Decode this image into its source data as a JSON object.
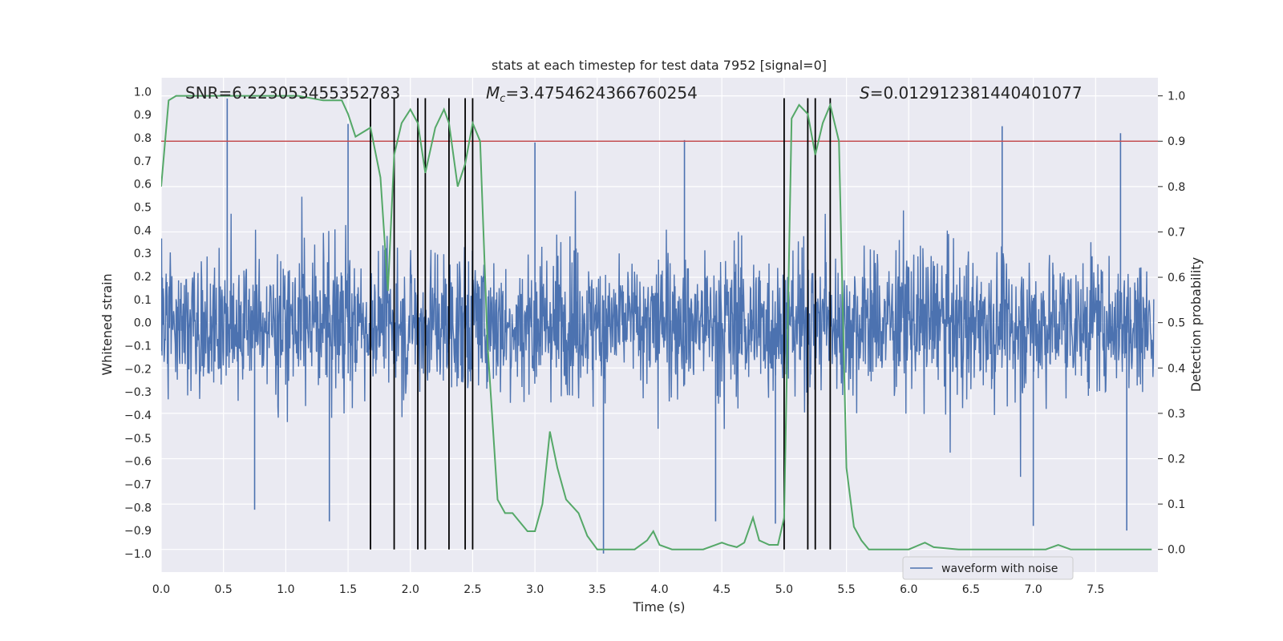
{
  "chart_data": {
    "type": "line",
    "title": "stats at each timestep for test data 7952 [signal=0]",
    "xlabel": "Time (s)",
    "ylabel_left": "Whitened strain",
    "ylabel_right": "Detection probability",
    "xlim": [
      0.0,
      8.0
    ],
    "ylim_left": [
      -1.08,
      1.06
    ],
    "ylim_right": [
      -0.05,
      1.04
    ],
    "x_ticks": [
      "0.0",
      "0.5",
      "1.0",
      "1.5",
      "2.0",
      "2.5",
      "3.0",
      "3.5",
      "4.0",
      "4.5",
      "5.0",
      "5.5",
      "6.0",
      "6.5",
      "7.0",
      "7.5"
    ],
    "y_left_ticks": [
      "1.0",
      "0.9",
      "0.8",
      "0.7",
      "0.6",
      "0.5",
      "0.4",
      "0.3",
      "0.2",
      "0.1",
      "0.0",
      "-0.1",
      "-0.2",
      "-0.3",
      "-0.4",
      "-0.5",
      "-0.6",
      "-0.7",
      "-0.8",
      "-0.9",
      "-1.0"
    ],
    "y_right_ticks": [
      "1.0",
      "0.9",
      "0.8",
      "0.7",
      "0.6",
      "0.5",
      "0.4",
      "0.3",
      "0.2",
      "0.1",
      "0.0"
    ],
    "annotations": {
      "snr": "SNR=6.223053455352783",
      "mc": "M",
      "mc_sub": "c",
      "mc_value": "=3.4754624366760254",
      "s": "S",
      "s_value": "=0.012912381440401077"
    },
    "threshold": 0.9,
    "detection_times": [
      1.68,
      1.87,
      2.06,
      2.12,
      2.31,
      2.44,
      2.5,
      5.0,
      5.19,
      5.25,
      5.37
    ],
    "series": [
      {
        "name": "waveform with noise",
        "color": "#4c72b0",
        "typical_amplitude": 0.42,
        "spikes": [
          {
            "t": 0.53,
            "v": 0.97
          },
          {
            "t": 1.5,
            "v": 0.86
          },
          {
            "t": 3.0,
            "v": 0.78
          },
          {
            "t": 4.2,
            "v": 0.79
          },
          {
            "t": 6.75,
            "v": 0.85
          },
          {
            "t": 7.7,
            "v": 0.82
          },
          {
            "t": 0.75,
            "v": -0.81
          },
          {
            "t": 1.35,
            "v": -0.86
          },
          {
            "t": 3.55,
            "v": -1.0
          },
          {
            "t": 4.45,
            "v": -0.86
          },
          {
            "t": 4.93,
            "v": -0.87
          },
          {
            "t": 7.0,
            "v": -0.88
          },
          {
            "t": 7.75,
            "v": -0.9
          }
        ]
      },
      {
        "name": "detection probability",
        "color": "#55a868",
        "x": [
          0.0,
          0.06,
          0.12,
          0.3,
          0.6,
          0.9,
          1.1,
          1.3,
          1.4,
          1.45,
          1.5,
          1.56,
          1.68,
          1.76,
          1.82,
          1.87,
          1.93,
          2.0,
          2.06,
          2.12,
          2.2,
          2.27,
          2.31,
          2.38,
          2.44,
          2.5,
          2.56,
          2.62,
          2.7,
          2.76,
          2.82,
          2.88,
          2.94,
          3.0,
          3.06,
          3.12,
          3.18,
          3.25,
          3.35,
          3.42,
          3.5,
          3.6,
          3.7,
          3.8,
          3.9,
          3.95,
          4.0,
          4.1,
          4.2,
          4.35,
          4.45,
          4.5,
          4.55,
          4.62,
          4.68,
          4.75,
          4.8,
          4.88,
          4.95,
          5.0,
          5.06,
          5.12,
          5.19,
          5.25,
          5.31,
          5.37,
          5.44,
          5.5,
          5.56,
          5.62,
          5.68,
          5.8,
          6.0,
          6.13,
          6.2,
          6.4,
          6.6,
          6.8,
          7.0,
          7.1,
          7.2,
          7.3,
          7.5,
          7.7,
          7.95
        ],
        "y": [
          0.8,
          0.99,
          1.0,
          1.0,
          1.0,
          1.0,
          1.0,
          0.99,
          0.99,
          0.99,
          0.96,
          0.91,
          0.93,
          0.82,
          0.57,
          0.87,
          0.94,
          0.97,
          0.94,
          0.83,
          0.93,
          0.97,
          0.94,
          0.8,
          0.85,
          0.94,
          0.9,
          0.45,
          0.11,
          0.08,
          0.08,
          0.06,
          0.04,
          0.04,
          0.1,
          0.26,
          0.18,
          0.11,
          0.08,
          0.03,
          0.0,
          0.0,
          0.0,
          0.0,
          0.02,
          0.04,
          0.01,
          0.0,
          0.0,
          0.0,
          0.01,
          0.015,
          0.01,
          0.005,
          0.015,
          0.07,
          0.02,
          0.01,
          0.01,
          0.07,
          0.95,
          0.98,
          0.96,
          0.87,
          0.94,
          0.98,
          0.9,
          0.18,
          0.05,
          0.02,
          0.0,
          0.0,
          0.0,
          0.015,
          0.005,
          0.0,
          0.0,
          0.0,
          0.0,
          0.0,
          0.01,
          0.0,
          0.0,
          0.0,
          0.0
        ]
      }
    ],
    "threshold_color": "#c44e52",
    "legend": {
      "label": "waveform with noise",
      "position": "lower-center-right"
    }
  }
}
